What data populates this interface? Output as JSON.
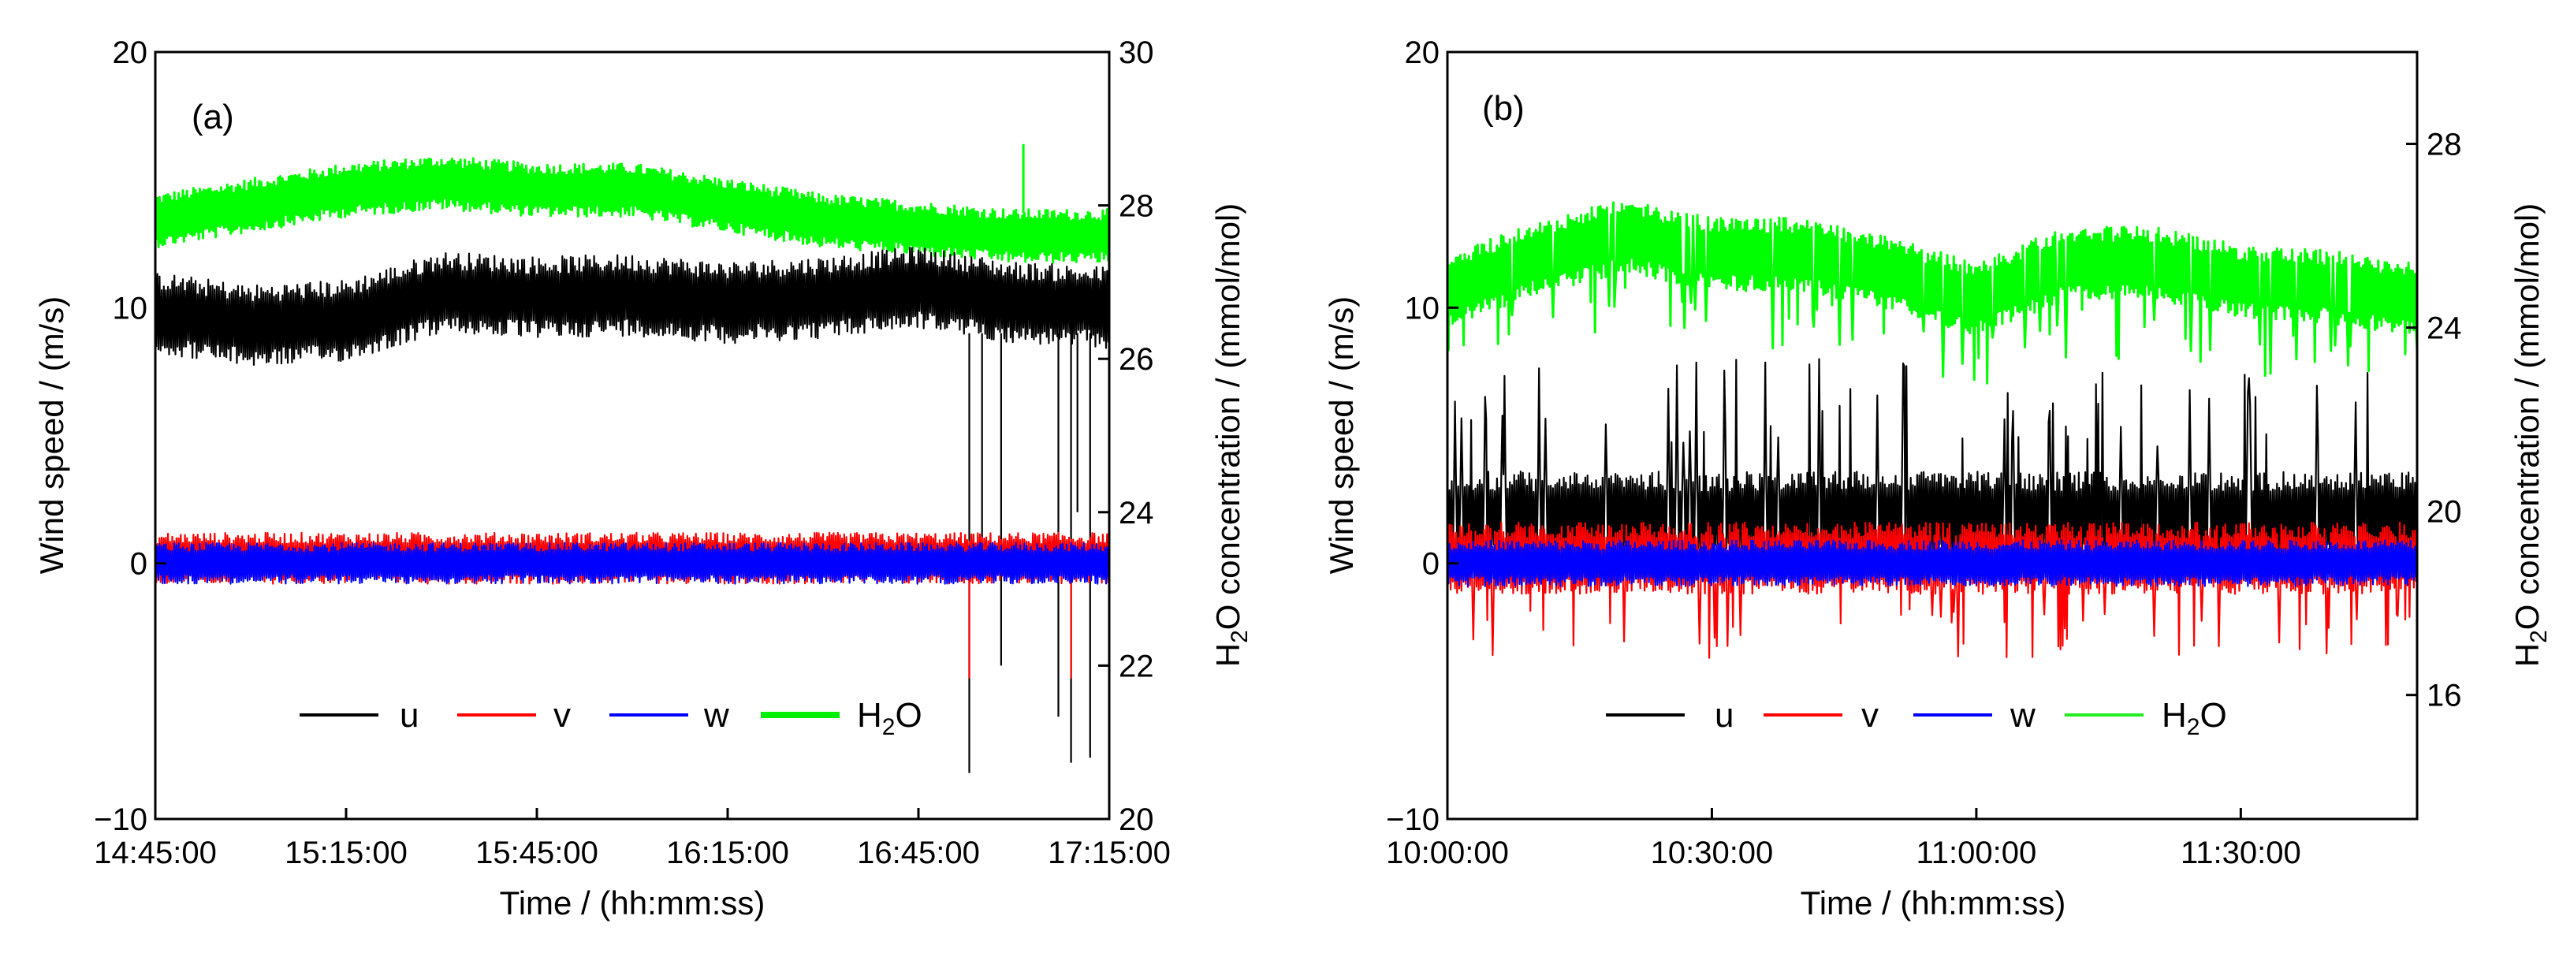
{
  "chart_data": [
    {
      "type": "line",
      "panel_label": "(a)",
      "xlabel": "Time / (hh:mm:ss)",
      "ylabel": "Wind speed / (m/s)",
      "y2label_parts": [
        "H",
        "2",
        "O concentration / (mmol/mol)"
      ],
      "x_ticks": [
        "14:45:00",
        "15:15:00",
        "15:45:00",
        "16:15:00",
        "16:45:00",
        "17:15:00"
      ],
      "xlim_minutes": [
        0,
        150
      ],
      "ylim": [
        -10,
        20
      ],
      "y_ticks": [
        -10,
        0,
        10,
        20
      ],
      "y2lim": [
        20,
        30
      ],
      "y2_ticks": [
        20,
        22,
        24,
        26,
        28,
        30
      ],
      "legend": [
        "u",
        "v",
        "w",
        "H2O"
      ],
      "legend_display": [
        [
          "u"
        ],
        [
          "v"
        ],
        [
          "w"
        ],
        [
          "H",
          "2",
          "O"
        ]
      ],
      "series": [
        {
          "name": "u",
          "axis": "left",
          "color": "#000000",
          "approx_mean": 10,
          "approx_amplitude": 1.6,
          "x_minutes": [
            0,
            15,
            30,
            45,
            60,
            75,
            90,
            105,
            120,
            135,
            150
          ],
          "trend": [
            9.8,
            9.3,
            9.5,
            10.6,
            10.4,
            10.5,
            10.2,
            10.4,
            10.8,
            10.2,
            10.0
          ]
        },
        {
          "name": "v",
          "axis": "left",
          "color": "#ff0000",
          "approx_mean": 0.2,
          "approx_amplitude": 1.0,
          "x_minutes": [
            0,
            150
          ],
          "trend": [
            0.2,
            0.2
          ]
        },
        {
          "name": "w",
          "axis": "left",
          "color": "#0000ff",
          "approx_mean": 0,
          "approx_amplitude": 0.8,
          "x_minutes": [
            0,
            150
          ],
          "trend": [
            0,
            0
          ]
        },
        {
          "name": "H2O",
          "axis": "right",
          "color": "#00ff00",
          "approx_mean": 27.9,
          "approx_amplitude": 0.35,
          "x_minutes": [
            0,
            15,
            30,
            45,
            60,
            75,
            90,
            105,
            120,
            135,
            150
          ],
          "trend": [
            27.8,
            28.0,
            28.2,
            28.3,
            28.2,
            28.2,
            28.0,
            27.8,
            27.7,
            27.6,
            27.6
          ]
        }
      ]
    },
    {
      "type": "line",
      "panel_label": "(b)",
      "xlabel": "Time / (hh:mm:ss)",
      "ylabel": "Wind speed / (m/s)",
      "y2label_parts": [
        "H",
        "2",
        "O concentration / (mmol/mol)"
      ],
      "x_ticks": [
        "10:00:00",
        "10:30:00",
        "11:00:00",
        "11:30:00"
      ],
      "xlim_minutes": [
        0,
        110
      ],
      "ylim": [
        -10,
        20
      ],
      "y_ticks": [
        -10,
        0,
        10,
        20
      ],
      "y2lim": [
        13.3,
        30
      ],
      "y2_ticks": [
        16,
        20,
        24,
        28
      ],
      "legend": [
        "u",
        "v",
        "w",
        "H2O"
      ],
      "legend_display": [
        [
          "u"
        ],
        [
          "v"
        ],
        [
          "w"
        ],
        [
          "H",
          "2",
          "O"
        ]
      ],
      "series": [
        {
          "name": "u",
          "axis": "left",
          "color": "#000000",
          "approx_mean": 1.8,
          "approx_amplitude": 1.8,
          "x_minutes": [
            0,
            110
          ],
          "trend": [
            1.8,
            1.8
          ]
        },
        {
          "name": "v",
          "axis": "left",
          "color": "#ff0000",
          "approx_mean": 0.2,
          "approx_amplitude": 1.4,
          "x_minutes": [
            0,
            110
          ],
          "trend": [
            0.2,
            0.2
          ]
        },
        {
          "name": "w",
          "axis": "left",
          "color": "#0000ff",
          "approx_mean": 0,
          "approx_amplitude": 0.9,
          "x_minutes": [
            0,
            110
          ],
          "trend": [
            0,
            0
          ]
        },
        {
          "name": "H2O",
          "axis": "right",
          "color": "#00ff00",
          "approx_mean": 25.2,
          "approx_amplitude": 0.8,
          "x_minutes": [
            0,
            10,
            20,
            30,
            40,
            50,
            60,
            70,
            80,
            90,
            100,
            110
          ],
          "trend": [
            24.8,
            25.5,
            26.0,
            25.6,
            25.6,
            25.2,
            24.6,
            25.4,
            25.4,
            25.0,
            24.9,
            24.6
          ]
        }
      ]
    }
  ]
}
